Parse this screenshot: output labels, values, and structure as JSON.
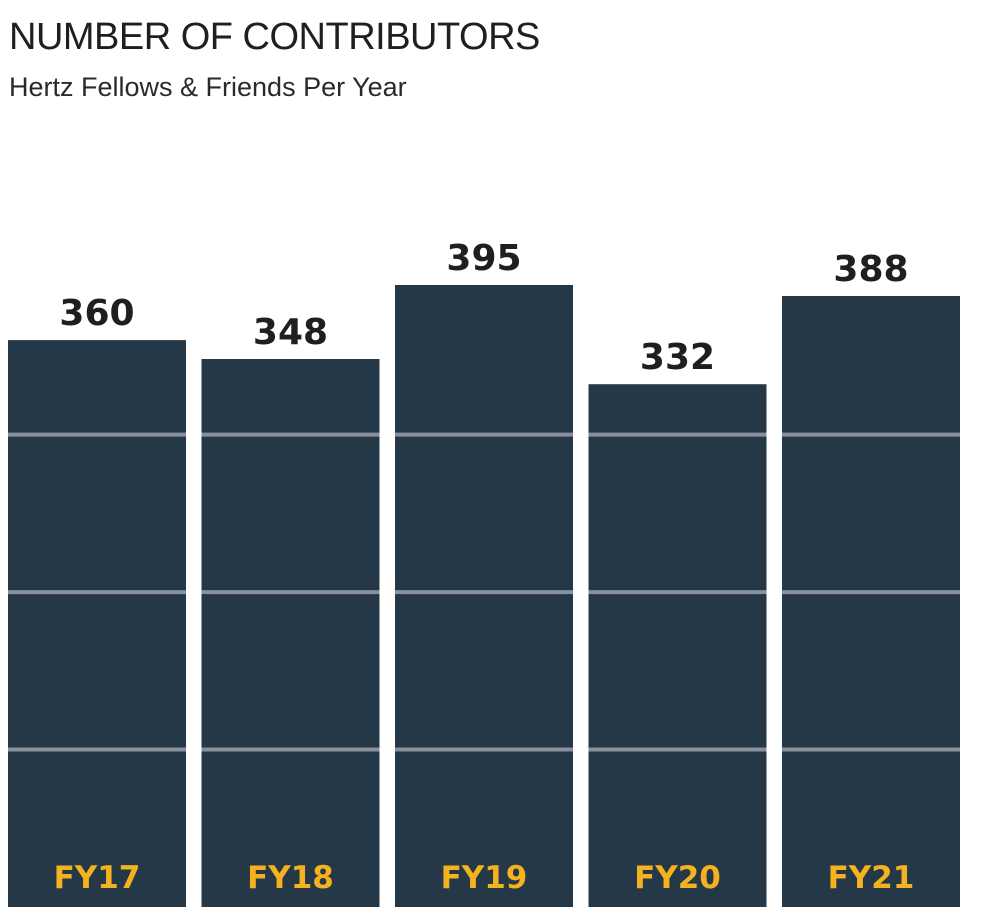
{
  "header": {
    "title": "NUMBER OF CONTRIBUTORS",
    "subtitle": "Hertz Fellows & Friends Per Year"
  },
  "colors": {
    "bar": "#243848",
    "category_label": "#f5b21f",
    "gridline": "#8a909b",
    "text": "#1f1f1f"
  },
  "chart_data": {
    "type": "bar",
    "title": "NUMBER OF CONTRIBUTORS",
    "subtitle": "Hertz Fellows & Friends Per Year",
    "categories": [
      "FY17",
      "FY18",
      "FY19",
      "FY20",
      "FY21"
    ],
    "values": [
      360,
      348,
      395,
      332,
      388
    ],
    "data_labels": [
      "360",
      "348",
      "395",
      "332",
      "388"
    ],
    "xlabel": "",
    "ylabel": "",
    "ylim": [
      0,
      395
    ],
    "gridlines": [
      100,
      200,
      300
    ],
    "grid": true,
    "legend": "none"
  }
}
